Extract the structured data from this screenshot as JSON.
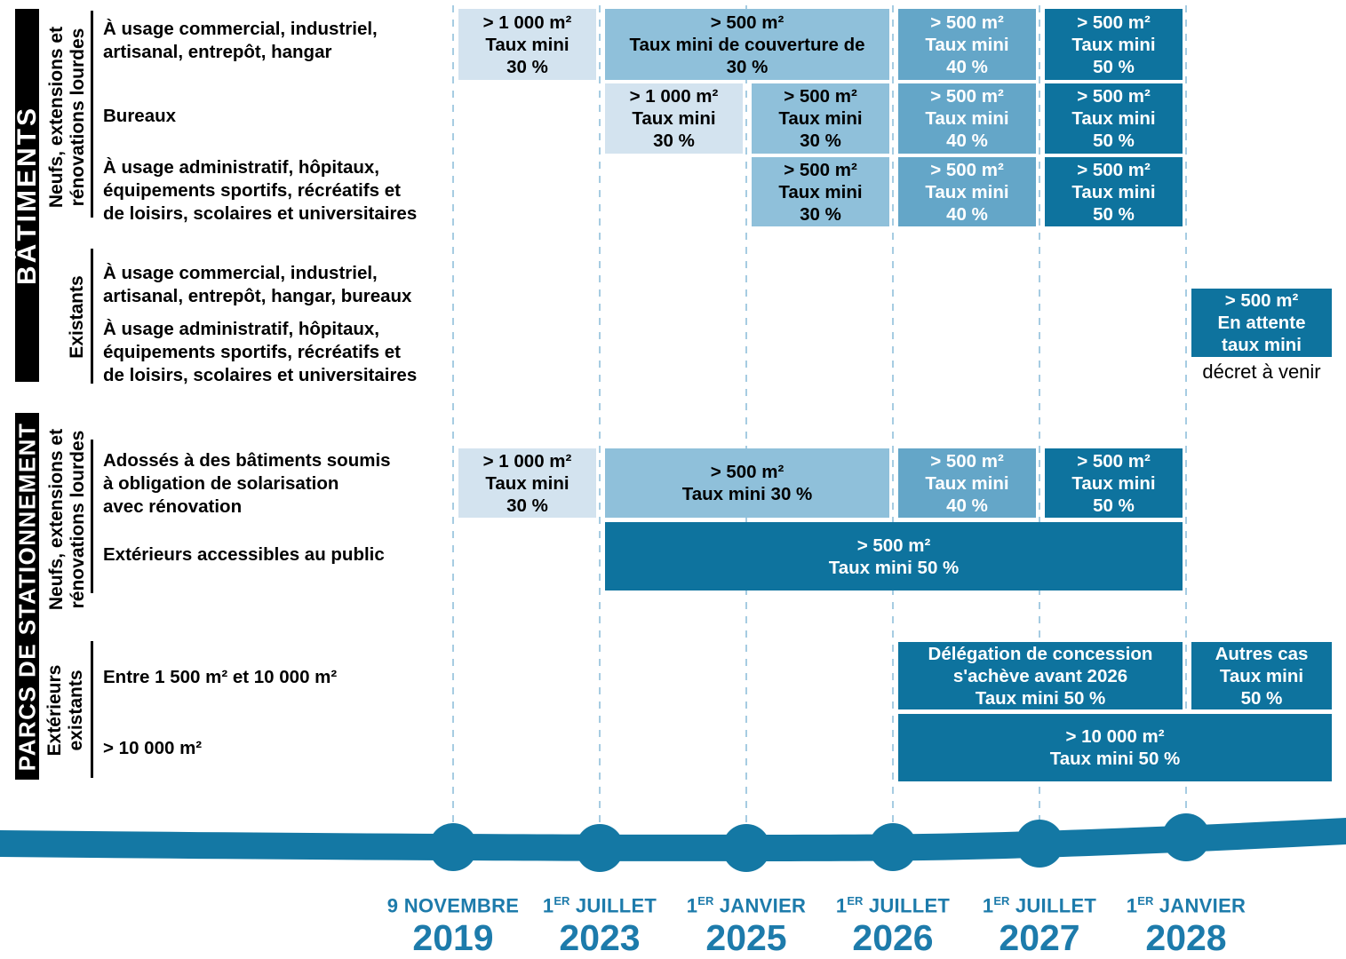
{
  "sections": [
    {
      "bar": "BÂTIMENTS",
      "groups": [
        {
          "lines": [
            "Neufs, extensions et",
            "rénovations lourdes"
          ]
        },
        {
          "lines": [
            "Existants"
          ]
        }
      ]
    },
    {
      "bar": "PARCS DE STATIONNEMENT",
      "groups": [
        {
          "lines": [
            "Neufs, extensions et",
            "rénovations lourdes"
          ]
        },
        {
          "lines": [
            "Extérieurs",
            "existants"
          ]
        }
      ]
    }
  ],
  "rows": [
    {
      "id": "r1",
      "lines": [
        "À usage commercial, industriel,",
        "artisanal, entrepôt, hangar"
      ]
    },
    {
      "id": "r2",
      "lines": [
        "Bureaux"
      ]
    },
    {
      "id": "r3",
      "lines": [
        "À usage administratif, hôpitaux,",
        "équipements sportifs, récréatifs et",
        "de loisirs, scolaires et universitaires"
      ]
    },
    {
      "id": "r4",
      "lines": [
        "À usage commercial, industriel,",
        "artisanal, entrepôt, hangar, bureaux"
      ]
    },
    {
      "id": "r5",
      "lines": [
        "À usage administratif, hôpitaux,",
        "équipements sportifs, récréatifs et",
        "de loisirs, scolaires et universitaires"
      ]
    },
    {
      "id": "r6",
      "lines": [
        "Adossés à des bâtiments soumis",
        "à obligation de solarisation",
        "avec rénovation"
      ]
    },
    {
      "id": "r7",
      "lines": [
        "Extérieurs accessibles au public"
      ]
    },
    {
      "id": "r8",
      "lines": [
        "Entre 1 500 m² et 10 000 m²"
      ]
    },
    {
      "id": "r9",
      "lines": [
        "> 10 000 m²"
      ]
    }
  ],
  "blocks": [
    {
      "row": "r1",
      "col_start": 1,
      "col_end": 1,
      "shade": "pale",
      "lines": [
        "> 1 000 m²",
        "Taux mini",
        "30 %"
      ]
    },
    {
      "row": "r1",
      "col_start": 2,
      "col_end": 3,
      "shade": "light",
      "lines": [
        "> 500 m²",
        "Taux mini de couverture de",
        "30 %"
      ]
    },
    {
      "row": "r1",
      "col_start": 4,
      "col_end": 4,
      "shade": "medium",
      "lines": [
        "> 500 m²",
        "Taux mini",
        "40 %"
      ]
    },
    {
      "row": "r1",
      "col_start": 5,
      "col_end": 5,
      "shade": "dark",
      "lines": [
        "> 500 m²",
        "Taux mini",
        "50 %"
      ]
    },
    {
      "row": "r2",
      "col_start": 2,
      "col_end": 2,
      "shade": "pale",
      "lines": [
        "> 1 000 m²",
        "Taux mini",
        "30 %"
      ]
    },
    {
      "row": "r2",
      "col_start": 3,
      "col_end": 3,
      "shade": "light",
      "lines": [
        "> 500 m²",
        "Taux mini",
        "30 %"
      ]
    },
    {
      "row": "r2",
      "col_start": 4,
      "col_end": 4,
      "shade": "medium",
      "lines": [
        "> 500 m²",
        "Taux mini",
        "40 %"
      ]
    },
    {
      "row": "r2",
      "col_start": 5,
      "col_end": 5,
      "shade": "dark",
      "lines": [
        "> 500 m²",
        "Taux mini",
        "50 %"
      ]
    },
    {
      "row": "r3",
      "col_start": 3,
      "col_end": 3,
      "shade": "light",
      "lines": [
        "> 500 m²",
        "Taux mini",
        "30 %"
      ]
    },
    {
      "row": "r3",
      "col_start": 4,
      "col_end": 4,
      "shade": "medium",
      "lines": [
        "> 500 m²",
        "Taux mini",
        "40 %"
      ]
    },
    {
      "row": "r3",
      "col_start": 5,
      "col_end": 5,
      "shade": "dark",
      "lines": [
        "> 500 m²",
        "Taux mini",
        "50 %"
      ]
    },
    {
      "row": "rex",
      "col_start": 6,
      "col_end": 6,
      "shade": "dark",
      "lines": [
        "> 500 m²",
        "En attente",
        "taux mini"
      ]
    },
    {
      "row": "r6",
      "col_start": 1,
      "col_end": 1,
      "shade": "pale",
      "lines": [
        "> 1 000 m²",
        "Taux mini",
        "30 %"
      ]
    },
    {
      "row": "r6",
      "col_start": 2,
      "col_end": 3,
      "shade": "light",
      "lines": [
        "> 500 m²",
        "Taux mini 30 %"
      ]
    },
    {
      "row": "r6",
      "col_start": 4,
      "col_end": 4,
      "shade": "medium",
      "lines": [
        "> 500 m²",
        "Taux mini",
        "40 %"
      ]
    },
    {
      "row": "r6",
      "col_start": 5,
      "col_end": 5,
      "shade": "dark",
      "lines": [
        "> 500 m²",
        "Taux mini",
        "50 %"
      ]
    },
    {
      "row": "r7",
      "col_start": 2,
      "col_end": 5,
      "shade": "dark",
      "lines": [
        "> 500 m²",
        "Taux mini 50 %"
      ]
    },
    {
      "row": "r8",
      "col_start": 4,
      "col_end": 5,
      "shade": "dark",
      "lines": [
        "Délégation de concession",
        "s'achève avant 2026",
        "Taux mini 50 %"
      ]
    },
    {
      "row": "r8",
      "col_start": 6,
      "col_end": 6,
      "shade": "dark",
      "lines": [
        "Autres cas",
        "Taux mini",
        "50 %"
      ]
    },
    {
      "row": "r9",
      "col_start": 4,
      "col_end": 6,
      "shade": "dark",
      "lines": [
        "> 10 000 m²",
        "Taux mini 50 %"
      ]
    }
  ],
  "note": "décret à venir",
  "timeline": {
    "dates": [
      {
        "num": "9",
        "sup": "",
        "month": " NOVEMBRE",
        "year": "2019"
      },
      {
        "num": "1",
        "sup": "ER",
        "month": " JUILLET",
        "year": "2023"
      },
      {
        "num": "1",
        "sup": "ER",
        "month": " JANVIER",
        "year": "2025"
      },
      {
        "num": "1",
        "sup": "ER",
        "month": " JUILLET",
        "year": "2026"
      },
      {
        "num": "1",
        "sup": "ER",
        "month": " JUILLET",
        "year": "2027"
      },
      {
        "num": "1",
        "sup": "ER",
        "month": " JANVIER",
        "year": "2028"
      }
    ]
  },
  "colors": {
    "pale": "#d3e3ef",
    "light": "#8fc0da",
    "medium": "#64a6c8",
    "dark": "#0e739e",
    "band": "#1478a4",
    "date_text": "#1d7bab",
    "dash": "#a6cce2"
  }
}
